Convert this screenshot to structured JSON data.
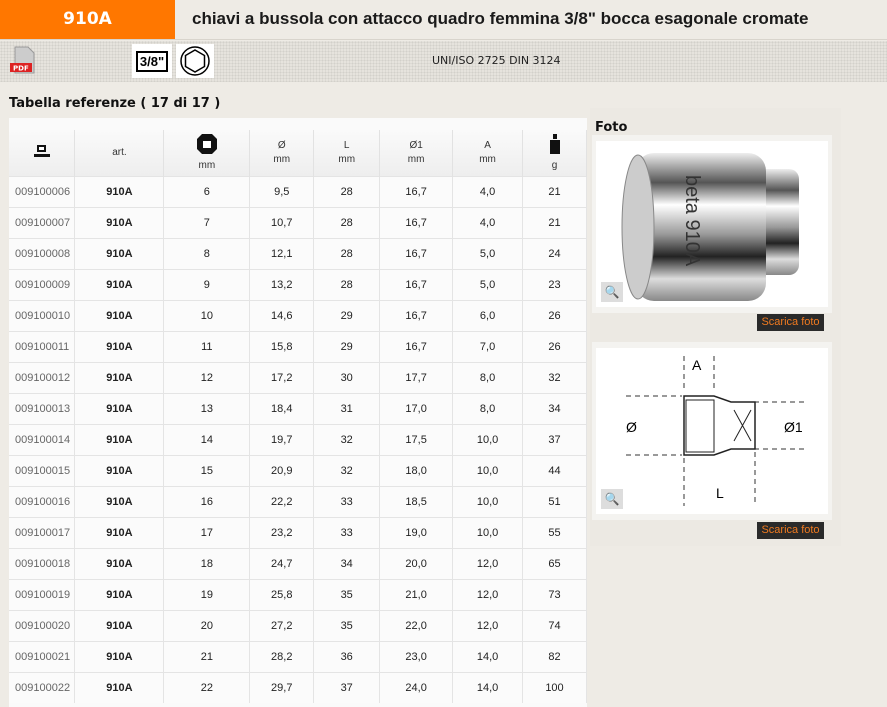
{
  "header": {
    "code": "910A",
    "title": "chiavi a bussola con attacco quadro femmina 3/8\" bocca esagonale cromate",
    "accent": "#ff7700"
  },
  "toolbar": {
    "pdf_label": "PDF",
    "drive_badge": "3/8\"",
    "hex_icon": "hexagon-socket-icon",
    "norm": "UNI/ISO 2725 DIN 3124"
  },
  "table": {
    "title": "Tabella referenze ( 17 di 17 )",
    "headers": [
      {
        "icon": "computer-icon",
        "label": "",
        "unit": ""
      },
      {
        "label": "art.",
        "unit": ""
      },
      {
        "icon": "hex-nut-icon",
        "label": "",
        "unit": "mm"
      },
      {
        "label": "Ø",
        "unit": "mm"
      },
      {
        "label": "L",
        "unit": "mm"
      },
      {
        "label": "Ø1",
        "unit": "mm"
      },
      {
        "label": "A",
        "unit": "mm"
      },
      {
        "icon": "weight-icon",
        "label": "",
        "unit": "g"
      }
    ],
    "rows": [
      [
        "009100006",
        "910A",
        "6",
        "9,5",
        "28",
        "16,7",
        "4,0",
        "21"
      ],
      [
        "009100007",
        "910A",
        "7",
        "10,7",
        "28",
        "16,7",
        "4,0",
        "21"
      ],
      [
        "009100008",
        "910A",
        "8",
        "12,1",
        "28",
        "16,7",
        "5,0",
        "24"
      ],
      [
        "009100009",
        "910A",
        "9",
        "13,2",
        "28",
        "16,7",
        "5,0",
        "23"
      ],
      [
        "009100010",
        "910A",
        "10",
        "14,6",
        "29",
        "16,7",
        "6,0",
        "26"
      ],
      [
        "009100011",
        "910A",
        "11",
        "15,8",
        "29",
        "16,7",
        "7,0",
        "26"
      ],
      [
        "009100012",
        "910A",
        "12",
        "17,2",
        "30",
        "17,7",
        "8,0",
        "32"
      ],
      [
        "009100013",
        "910A",
        "13",
        "18,4",
        "31",
        "17,0",
        "8,0",
        "34"
      ],
      [
        "009100014",
        "910A",
        "14",
        "19,7",
        "32",
        "17,5",
        "10,0",
        "37"
      ],
      [
        "009100015",
        "910A",
        "15",
        "20,9",
        "32",
        "18,0",
        "10,0",
        "44"
      ],
      [
        "009100016",
        "910A",
        "16",
        "22,2",
        "33",
        "18,5",
        "10,0",
        "51"
      ],
      [
        "009100017",
        "910A",
        "17",
        "23,2",
        "33",
        "19,0",
        "10,0",
        "55"
      ],
      [
        "009100018",
        "910A",
        "18",
        "24,7",
        "34",
        "20,0",
        "12,0",
        "65"
      ],
      [
        "009100019",
        "910A",
        "19",
        "25,8",
        "35",
        "21,0",
        "12,0",
        "73"
      ],
      [
        "009100020",
        "910A",
        "20",
        "27,2",
        "35",
        "22,0",
        "12,0",
        "74"
      ],
      [
        "009100021",
        "910A",
        "21",
        "28,2",
        "36",
        "23,0",
        "14,0",
        "82"
      ],
      [
        "009100022",
        "910A",
        "22",
        "29,7",
        "37",
        "24,0",
        "14,0",
        "100"
      ]
    ]
  },
  "side": {
    "title": "Foto",
    "photo_engraving": "beta 910A",
    "download_label": "Scarica foto",
    "drawing_labels": {
      "a": "A",
      "d": "Ø",
      "d1": "Ø1",
      "l": "L"
    }
  }
}
